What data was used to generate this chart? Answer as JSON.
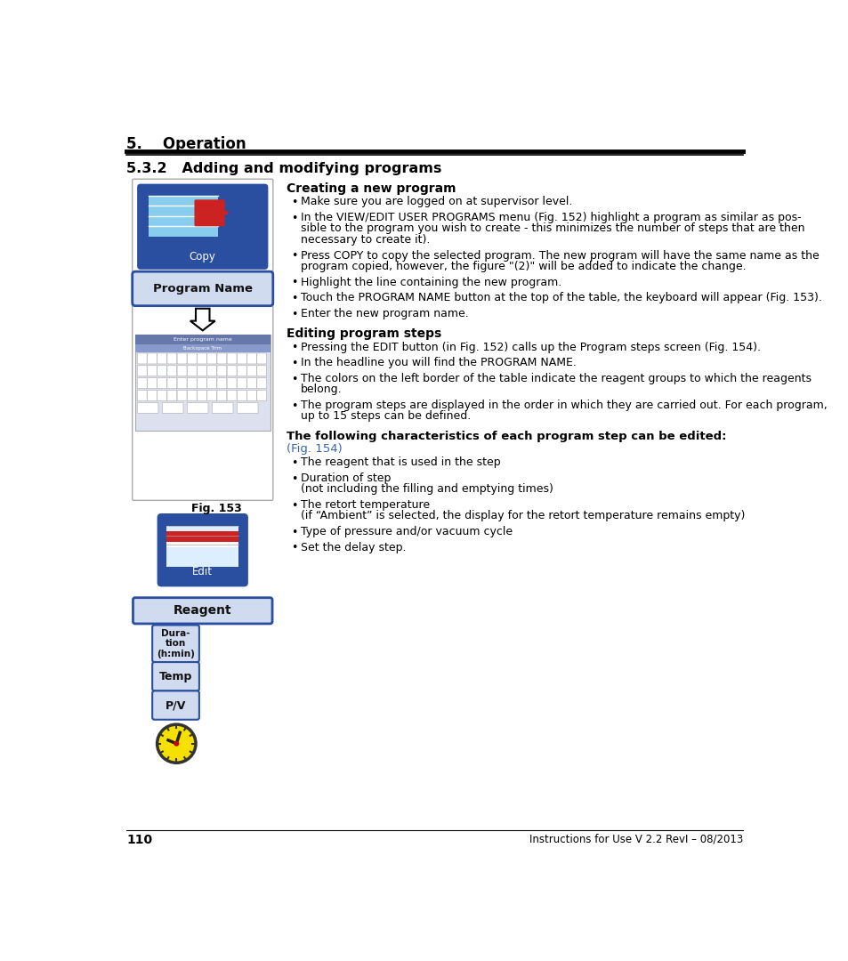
{
  "page_number": "110",
  "footer_right": "Instructions for Use V 2.2 RevI – 08/2013",
  "header_title": "5.    Operation",
  "section_title": "5.3.2   Adding and modifying programs",
  "fig_label": "Fig. 153",
  "subsection1": "Creating a new program",
  "subsection2": "Editing program steps",
  "subsection3_bold": "The following characteristics of each program step can be edited:",
  "subsection3_link": "(Fig. 154)",
  "link_color": "#3a65b0",
  "bg_color": "#ffffff",
  "text_color": "#000000",
  "icon_blue": "#2a4fa0",
  "icon_bg_blue": "#d0dbf0",
  "icon_border": "#2a4fa0",
  "bullet1_data": [
    {
      "text": "Make sure you are logged on at supervisor level.",
      "lines": 1
    },
    {
      "text": "In the VIEW/EDIT USER PROGRAMS menu (Fig. 152) highlight a program as similar as pos-\nsible to the program you wish to create - this minimizes the number of steps that are then\nnecessary to create it).",
      "lines": 3
    },
    {
      "text": "Press COPY to copy the selected program. The new program will have the same name as the\nprogram copied, however, the figure \"(2)\" will be added to indicate the change.",
      "lines": 2
    },
    {
      "text": "Highlight the line containing the new program.",
      "lines": 1
    },
    {
      "text": "Touch the PROGRAM NAME button at the top of the table, the keyboard will appear (Fig. 153).",
      "lines": 1
    },
    {
      "text": "Enter the new program name.",
      "lines": 1
    }
  ],
  "bullet2_data": [
    {
      "text": "Pressing the EDIT button (in Fig. 152) calls up the Program steps screen (Fig. 154).",
      "lines": 1
    },
    {
      "text": "In the headline you will find the PROGRAM NAME.",
      "lines": 1
    },
    {
      "text": "The colors on the left border of the table indicate the reagent groups to which the reagents\nbelong.",
      "lines": 2
    },
    {
      "text": "The program steps are displayed in the order in which they are carried out. For each program,\nup to 15 steps can be defined.",
      "lines": 2
    }
  ],
  "bullet3_data": [
    {
      "text": "The reagent that is used in the step",
      "lines": 1
    },
    {
      "text": "Duration of step\n(not including the filling and emptying times)",
      "lines": 2
    },
    {
      "text": "The retort temperature\n(if “Ambient” is selected, the display for the retort temperature remains empty)",
      "lines": 2
    },
    {
      "text": "Type of pressure and/or vacuum cycle",
      "lines": 1
    },
    {
      "text": "Set the delay step.",
      "lines": 1
    }
  ]
}
